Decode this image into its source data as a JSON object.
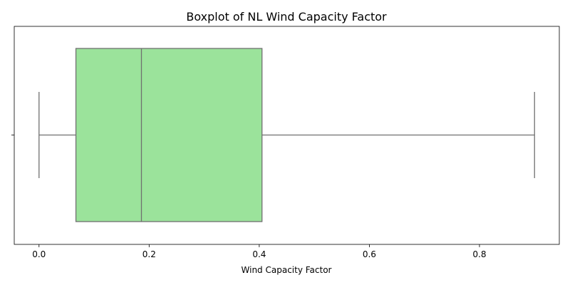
{
  "chart_data": {
    "type": "boxplot",
    "title": "Boxplot of NL Wind Capacity Factor",
    "xlabel": "Wind Capacity Factor",
    "ylabel": "",
    "orientation": "horizontal",
    "xlim": [
      -0.045,
      0.945
    ],
    "x_ticks": [
      0.0,
      0.2,
      0.4,
      0.6,
      0.8
    ],
    "x_tick_labels": [
      "0.0",
      "0.2",
      "0.4",
      "0.6",
      "0.8"
    ],
    "grid": false,
    "legend": "none",
    "box": {
      "whisker_low": 0.0,
      "q1": 0.067,
      "median": 0.186,
      "q3": 0.405,
      "whisker_high": 0.9
    },
    "colors": {
      "box_fill": "#9be39b",
      "box_edge": "#707070",
      "axis": "#000000"
    }
  }
}
